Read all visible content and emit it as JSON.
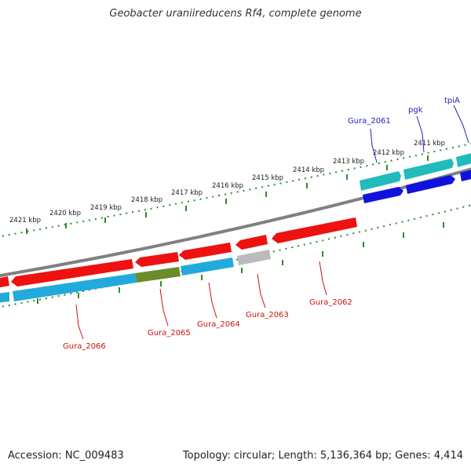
{
  "title": "Geobacter uraniireducens Rf4, complete genome",
  "footer": {
    "accession": "Accession: NC_009483",
    "summary": "Topology: circular; Length: 5,136,364 bp; Genes: 4,414"
  },
  "scale_labels": [
    "2421 kbp",
    "2420 kbp",
    "2419 kbp",
    "2418 kbp",
    "2417 kbp",
    "2416 kbp",
    "2415 kbp",
    "2414 kbp",
    "2413 kbp",
    "2412 kbp",
    "2411 kbp"
  ],
  "colors": {
    "backbone": "#888888",
    "ticks": "#2e8b2e",
    "forward_red": "#ee1111",
    "reverse_blue": "#22aadd",
    "teal": "#22bbbb",
    "darkblue": "#1111dd",
    "olive": "#6b8c2a",
    "gray": "#bbbbbb",
    "label_blue": "#2222bb",
    "label_red": "#cc1111"
  },
  "gene_labels_top": [
    {
      "id": "gura-2061-label",
      "text": "Gura_2061"
    },
    {
      "id": "pgk-label",
      "text": "pgk"
    },
    {
      "id": "tpia-label",
      "text": "tpiA"
    }
  ],
  "gene_labels_bottom": [
    {
      "id": "gura-2066-label",
      "text": "Gura_2066"
    },
    {
      "id": "gura-2065-label",
      "text": "Gura_2065"
    },
    {
      "id": "gura-2064-label",
      "text": "Gura_2064"
    },
    {
      "id": "gura-2063-label",
      "text": "Gura_2063"
    },
    {
      "id": "gura-2062-label",
      "text": "Gura_2062"
    }
  ]
}
